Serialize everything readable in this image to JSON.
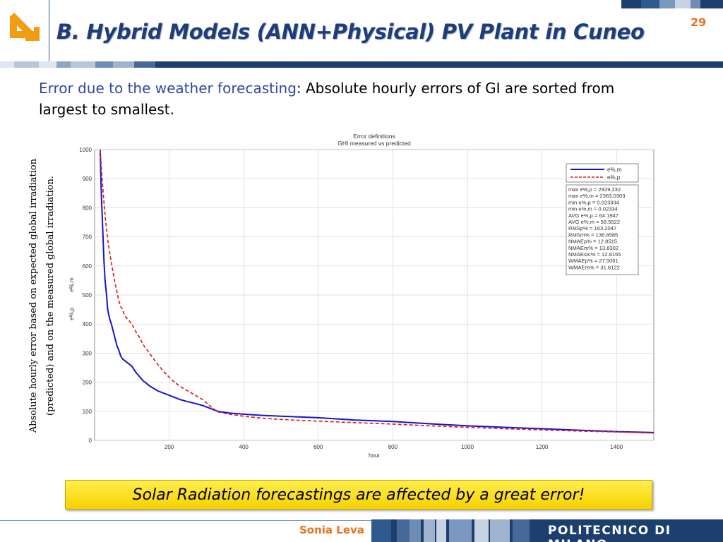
{
  "slide": {
    "title": "B. Hybrid Models (ANN+Physical) PV Plant in Cuneo",
    "page_number": "29",
    "lead_highlight": "Error due to the weather forecasting",
    "lead_rest": ": Absolute hourly errors of GI are sorted from largest to smallest.",
    "side_ylabel": "Absolute hourly error based on expected global irradiation (predicted) and on the measured global irradiation.",
    "banner": "Solar Radiation forecastings are affected by a great error!",
    "author": "Sonia Leva",
    "university": "POLITECNICO DI MILANO",
    "colors": {
      "title": "#1f3d7a",
      "accent": "#e8731e",
      "highlight": "#2f47a3",
      "banner": "#ffe21a"
    }
  },
  "chart_data": {
    "type": "line",
    "title": "Error definitions",
    "subtitle": "GHI measured vs predicted",
    "xlabel": "hour",
    "ylabels": [
      "e%,m",
      "e%,p"
    ],
    "xlim": [
      0,
      1500
    ],
    "ylim": [
      0,
      1000
    ],
    "xticks": [
      200,
      400,
      600,
      800,
      1000,
      1200,
      1400
    ],
    "yticks": [
      0,
      100,
      200,
      300,
      400,
      500,
      600,
      700,
      800,
      900,
      1000
    ],
    "grid": true,
    "legend_position": "top-right",
    "series": [
      {
        "name": "e%,m",
        "color": "#1414d2",
        "dash": false,
        "x": [
          15,
          18,
          22,
          25,
          28,
          32,
          35,
          40,
          45,
          50,
          55,
          60,
          65,
          70,
          75,
          80,
          90,
          100,
          110,
          120,
          130,
          150,
          170,
          190,
          210,
          230,
          250,
          270,
          290,
          310,
          330,
          360,
          400,
          450,
          500,
          600,
          700,
          800,
          900,
          1000,
          1100,
          1200,
          1300,
          1400,
          1500
        ],
        "y": [
          1000,
          850,
          720,
          620,
          550,
          500,
          450,
          420,
          400,
          375,
          350,
          325,
          310,
          290,
          280,
          275,
          265,
          255,
          235,
          220,
          205,
          185,
          170,
          160,
          150,
          140,
          133,
          127,
          120,
          110,
          100,
          94,
          90,
          86,
          83,
          78,
          70,
          65,
          57,
          50,
          45,
          40,
          35,
          30,
          27
        ]
      },
      {
        "name": "e%,p",
        "color": "#e02020",
        "dash": true,
        "x": [
          15,
          20,
          25,
          30,
          35,
          40,
          45,
          50,
          55,
          60,
          65,
          70,
          75,
          80,
          90,
          100,
          110,
          120,
          130,
          150,
          170,
          190,
          210,
          230,
          250,
          270,
          290,
          310,
          330,
          360,
          400,
          450,
          500,
          600,
          700,
          800,
          900,
          1000,
          1100,
          1200,
          1300,
          1400,
          1500
        ],
        "y": [
          1000,
          900,
          820,
          750,
          690,
          650,
          610,
          575,
          540,
          510,
          480,
          460,
          450,
          430,
          415,
          400,
          375,
          355,
          330,
          295,
          260,
          230,
          205,
          185,
          170,
          155,
          140,
          118,
          98,
          90,
          83,
          76,
          72,
          66,
          61,
          56,
          50,
          45,
          40,
          36,
          32,
          29,
          25
        ]
      }
    ],
    "stats_box": [
      "max e%,p = 2929.232",
      "max e%,m = 2363.0303",
      "min e%,p = 0.023334",
      "min e%,m = 0.02334",
      "AVG e%,p = 64.1947",
      "AVG e%,m = 58.5522",
      "RMSp% = 163.2047",
      "RMSm% = 136.8585",
      "NMAEp% = 12.8515",
      "NMAEm% = 13.8302",
      "NMAEstc% = 12.8155",
      "WMAEp% = 27.5061",
      "WMAEm% = 31.8122"
    ]
  }
}
